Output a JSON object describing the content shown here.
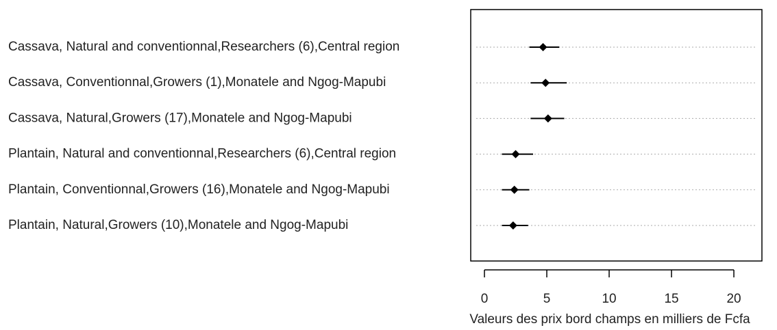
{
  "chart_data": {
    "type": "dot",
    "categories": [
      "Cassava, Natural and conventionnal,Researchers  (6),Central region",
      "Cassava, Conventionnal,Growers  (1),Monatele and Ngog-Mapubi",
      "Cassava, Natural,Growers  (17),Monatele and Ngog-Mapubi",
      "Plantain, Natural and conventionnal,Researchers (6),Central region",
      "Plantain, Conventionnal,Growers (16),Monatele and Ngog-Mapubi",
      "Plantain, Natural,Growers (10),Monatele and Ngog-Mapubi"
    ],
    "values": [
      4.7,
      4.9,
      5.1,
      2.5,
      2.4,
      2.3
    ],
    "lower": [
      3.6,
      3.7,
      3.7,
      1.4,
      1.4,
      1.4
    ],
    "upper": [
      6.0,
      6.6,
      6.4,
      3.9,
      3.6,
      3.5
    ],
    "color": "#000000",
    "xlabel": "Valeurs des prix bord champs en milliers de Fcfa",
    "xlim": [
      -1.1,
      22.25
    ],
    "xticks": [
      0,
      5,
      10,
      15,
      20
    ],
    "grid": true
  }
}
